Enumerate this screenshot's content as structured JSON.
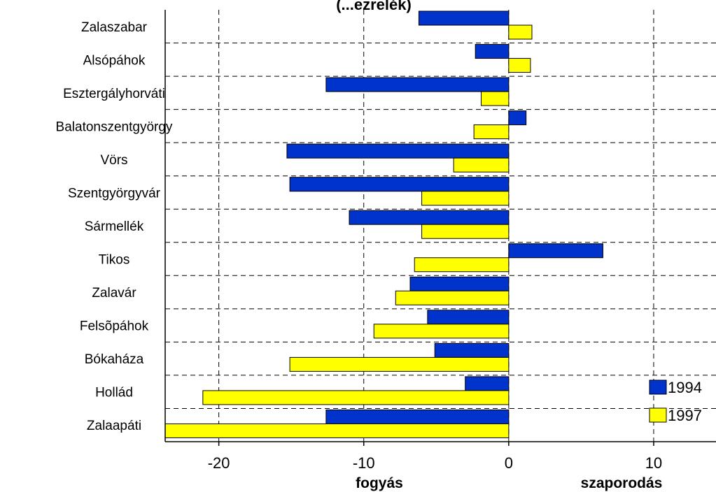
{
  "chart_data": {
    "type": "bar",
    "orientation": "horizontal",
    "title": "(...ezrelék)",
    "categories": [
      "Zalaszabar",
      "Alsópáhok",
      "Esztergályhorváti",
      "Balatonszentgyörgy",
      "Vörs",
      "Szentgyörgyvár",
      "Sármellék",
      "Tikos",
      "Zalavár",
      "Felsõpáhok",
      "Bókaháza",
      "Hollád",
      "Zalaapáti"
    ],
    "series": [
      {
        "name": "1994",
        "color": "#0033cc",
        "values": [
          -6.2,
          -2.3,
          -12.6,
          1.2,
          -15.3,
          -15.1,
          -11.0,
          6.5,
          -6.8,
          -5.6,
          -5.1,
          -3.0,
          -12.6
        ]
      },
      {
        "name": "1997",
        "color": "#ffff00",
        "values": [
          1.6,
          1.5,
          -1.9,
          -2.4,
          -3.8,
          -6.0,
          -6.0,
          -6.5,
          -7.8,
          -9.3,
          -15.1,
          -21.1,
          -23.7
        ]
      }
    ],
    "xlim": [
      -23.7,
      14.3
    ],
    "xticks": [
      -20,
      -10,
      0,
      10
    ],
    "xlabel_left": "fogyás",
    "xlabel_right": "szaporodás",
    "grid": true,
    "legend_position": "bottom-right"
  }
}
